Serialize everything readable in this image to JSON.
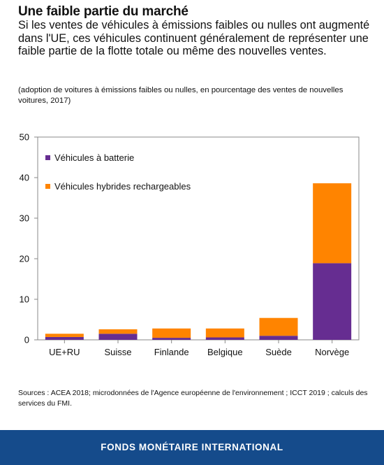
{
  "header": {
    "title": "Une faible partie du marché",
    "subtitle": "Si les ventes de véhicules à émissions faibles ou nulles ont augmenté dans l'UE, ces véhicules continuent généralement de représenter une faible partie de la flotte totale ou même des nouvelles ventes.",
    "note": "(adoption de voitures à émissions faibles ou nulles, en pourcentage des ventes de nouvelles voitures, 2017)"
  },
  "chart_data": {
    "type": "bar",
    "stacked": true,
    "categories": [
      "UE+RU",
      "Suisse",
      "Finlande",
      "Belgique",
      "Suède",
      "Norvège"
    ],
    "series": [
      {
        "name": "Véhicules à batterie",
        "color": "#662d91",
        "values": [
          0.7,
          1.5,
          0.5,
          0.6,
          1.0,
          18.9
        ]
      },
      {
        "name": "Véhicules hybrides rechargeables",
        "color": "#ff8400",
        "values": [
          0.8,
          1.1,
          2.3,
          2.2,
          4.4,
          19.7
        ]
      }
    ],
    "yticks": [
      0,
      10,
      20,
      30,
      40,
      50
    ],
    "ylim": [
      0,
      50
    ],
    "grid": false,
    "legend_position": "top-left"
  },
  "sources": "Sources : ACEA 2018; microdonnées de l'Agence européenne de l'environnement ; ICCT 2019 ; calculs des services du FMI.",
  "footer": {
    "text": "FONDS MONÉTAIRE INTERNATIONAL"
  }
}
